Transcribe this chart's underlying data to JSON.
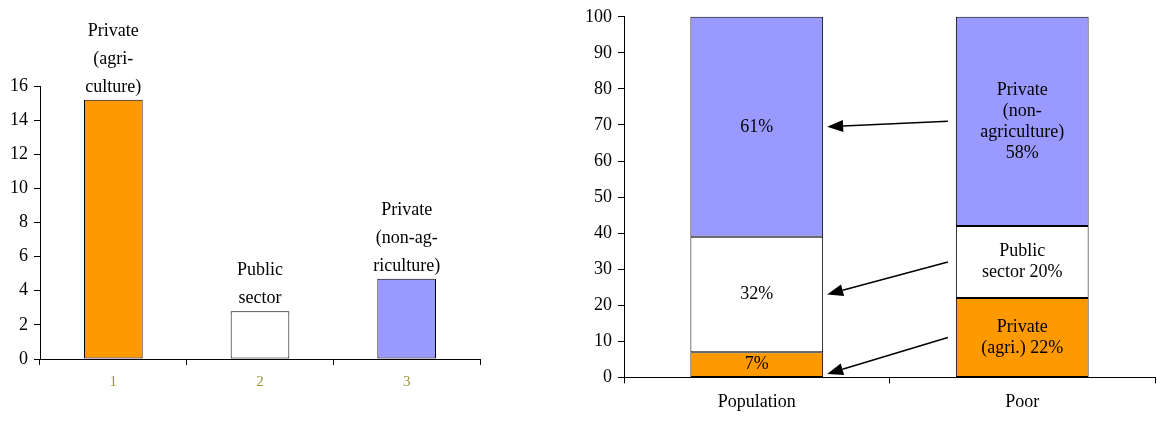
{
  "chart_data": [
    {
      "type": "bar",
      "categories": [
        "1",
        "2",
        "3"
      ],
      "values": [
        15.2,
        2.8,
        4.7
      ],
      "colors": [
        "#ff9900",
        "#ffffff",
        "#9999ff"
      ],
      "ylim": [
        0,
        16
      ],
      "yticks": [
        0,
        2,
        4,
        6,
        8,
        10,
        12,
        14,
        16
      ],
      "grid": false,
      "legend": false,
      "annotations": [
        {
          "text": "Private\n(agri-\nculture)",
          "x": "1",
          "y": 15.2
        },
        {
          "text": "Public\nsector",
          "x": "2",
          "y": 2.8
        },
        {
          "text": "Private\n(non-ag-\nriculture)",
          "x": "3",
          "y": 4.7
        }
      ]
    },
    {
      "type": "bar",
      "stacked": true,
      "categories": [
        "Population",
        "Poor"
      ],
      "series": [
        {
          "color": "#ff9900",
          "values": [
            7,
            22
          ],
          "value_labels": [
            "7%",
            "Private\n(agri.) 22%"
          ]
        },
        {
          "color": "#ffffff",
          "values": [
            32,
            20
          ],
          "value_labels": [
            "32%",
            "Public\nsector 20%"
          ]
        },
        {
          "color": "#9999ff",
          "values": [
            61,
            58
          ],
          "value_labels": [
            "61%",
            "Private\n(non-\nagriculture)\n58%"
          ]
        }
      ],
      "ylim": [
        0,
        100
      ],
      "yticks": [
        0,
        10,
        20,
        30,
        40,
        50,
        60,
        70,
        80,
        90,
        100
      ],
      "grid": false,
      "legend": false
    }
  ]
}
